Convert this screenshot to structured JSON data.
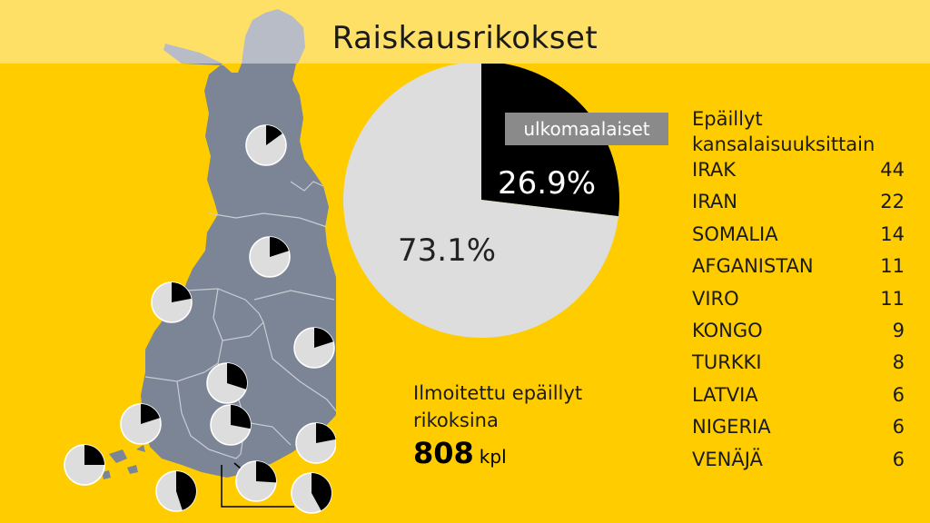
{
  "title": "Raiskausrikokset",
  "chart_data": [
    {
      "type": "pie",
      "slices": [
        {
          "label": "ulkomaalaiset",
          "value": 26.9,
          "text": "26.9%",
          "color": "#000000"
        },
        {
          "label": "",
          "value": 73.1,
          "text": "73.1%",
          "color": "#dddddd"
        }
      ]
    },
    {
      "type": "table",
      "header": "Epäillyt kansalaisuuksittain",
      "rows": [
        {
          "country": "IRAK",
          "count": 44
        },
        {
          "country": "IRAN",
          "count": 22
        },
        {
          "country": "SOMALIA",
          "count": 14
        },
        {
          "country": "AFGANISTAN",
          "count": 11
        },
        {
          "country": "VIRO",
          "count": 11
        },
        {
          "country": "KONGO",
          "count": 9
        },
        {
          "country": "TURKKI",
          "count": 8
        },
        {
          "country": "LATVIA",
          "count": 6
        },
        {
          "country": "NIGERIA",
          "count": 6
        },
        {
          "country": "VENÄJÄ",
          "count": 6
        }
      ]
    },
    {
      "type": "pie",
      "description_type": "regional mini pies",
      "regional_foreign_shares": [
        0.15,
        0.2,
        0.22,
        0.2,
        0.3,
        0.2,
        0.28,
        0.22,
        0.3,
        0.45,
        0.26,
        0.42,
        0.25
      ]
    }
  ],
  "reported": {
    "label": "Ilmoitettu epäillyt rikoksina",
    "value": "808",
    "unit": "kpl"
  },
  "colors": {
    "background": "#ffcc00",
    "top_band": "#ffe066",
    "map": "#7b8595",
    "foreign": "#000000",
    "other": "#dddddd",
    "label_box": "#8a8a8a"
  }
}
